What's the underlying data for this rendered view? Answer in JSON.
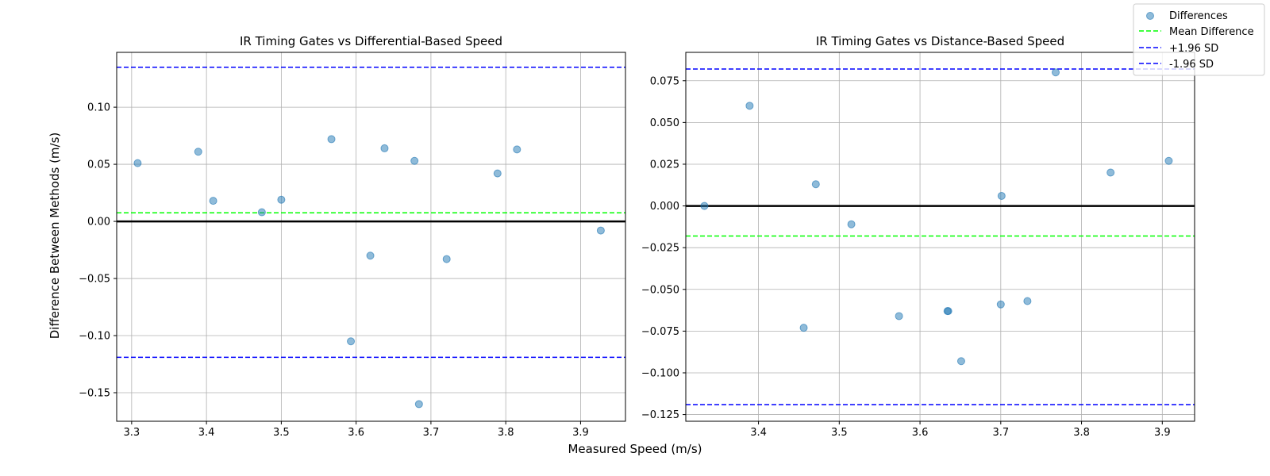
{
  "figure": {
    "xlabel": "Measured Speed (m/s)",
    "ylabel": "Difference Between Methods (m/s)"
  },
  "legend": {
    "placement": "top-right",
    "entries": [
      {
        "label": "Differences",
        "kind": "marker",
        "color": "#1f77b4"
      },
      {
        "label": "Mean Difference",
        "kind": "dashed",
        "color": "#00ff00"
      },
      {
        "label": "+1.96 SD",
        "kind": "dashed",
        "color": "#0000ff"
      },
      {
        "label": "-1.96 SD",
        "kind": "dashed",
        "color": "#0000ff"
      }
    ]
  },
  "chart_data": [
    {
      "type": "scatter",
      "title": "IR Timing Gates vs Differential-Based Speed",
      "xlabel": "Measured Speed (m/s)",
      "ylabel": "Difference Between Methods (m/s)",
      "xlim": [
        3.28,
        3.96
      ],
      "ylim": [
        -0.175,
        0.148
      ],
      "xticks": [
        3.3,
        3.4,
        3.5,
        3.6,
        3.7,
        3.8,
        3.9
      ],
      "xtick_labels": [
        "3.3",
        "3.4",
        "3.5",
        "3.6",
        "3.7",
        "3.8",
        "3.9"
      ],
      "yticks": [
        -0.15,
        -0.1,
        -0.05,
        0.0,
        0.05,
        0.1
      ],
      "ytick_labels": [
        "−0.15",
        "−0.10",
        "−0.05",
        "0.00",
        "0.05",
        "0.10"
      ],
      "grid": true,
      "zero_line": 0.0,
      "mean_difference": 0.0075,
      "upper_sd": 0.135,
      "lower_sd": -0.119,
      "series": [
        {
          "name": "Differences",
          "color": "#1f77b4",
          "x": [
            3.308,
            3.389,
            3.409,
            3.474,
            3.5,
            3.567,
            3.593,
            3.619,
            3.638,
            3.678,
            3.684,
            3.721,
            3.789,
            3.815,
            3.927
          ],
          "y": [
            0.051,
            0.061,
            0.018,
            0.008,
            0.019,
            0.072,
            -0.105,
            -0.03,
            0.064,
            0.053,
            -0.16,
            -0.033,
            0.042,
            0.063,
            -0.008
          ]
        }
      ]
    },
    {
      "type": "scatter",
      "title": "IR Timing Gates vs Distance-Based Speed",
      "xlabel": "Measured Speed (m/s)",
      "ylabel": "",
      "xlim": [
        3.31,
        3.94
      ],
      "ylim": [
        -0.129,
        0.092
      ],
      "xticks": [
        3.4,
        3.5,
        3.6,
        3.7,
        3.8,
        3.9
      ],
      "xtick_labels": [
        "3.4",
        "3.5",
        "3.6",
        "3.7",
        "3.8",
        "3.9"
      ],
      "yticks": [
        -0.125,
        -0.1,
        -0.075,
        -0.05,
        -0.025,
        0.0,
        0.025,
        0.05,
        0.075
      ],
      "ytick_labels": [
        "−0.125",
        "−0.100",
        "−0.075",
        "−0.050",
        "−0.025",
        "0.000",
        "0.025",
        "0.050",
        "0.075"
      ],
      "grid": true,
      "zero_line": 0.0,
      "mean_difference": -0.018,
      "upper_sd": 0.082,
      "lower_sd": -0.119,
      "series": [
        {
          "name": "Differences",
          "color": "#1f77b4",
          "x": [
            3.333,
            3.389,
            3.456,
            3.471,
            3.515,
            3.574,
            3.634,
            3.635,
            3.651,
            3.7,
            3.701,
            3.733,
            3.768,
            3.836,
            3.908
          ],
          "y": [
            0.0,
            0.06,
            -0.073,
            0.013,
            -0.011,
            -0.066,
            -0.063,
            -0.063,
            -0.093,
            -0.059,
            0.006,
            -0.057,
            0.08,
            0.02,
            0.027
          ]
        }
      ]
    }
  ]
}
